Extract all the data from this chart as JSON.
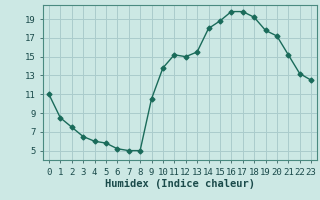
{
  "xlabel": "Humidex (Indice chaleur)",
  "x": [
    0,
    1,
    2,
    3,
    4,
    5,
    6,
    7,
    8,
    9,
    10,
    11,
    12,
    13,
    14,
    15,
    16,
    17,
    18,
    19,
    20,
    21,
    22,
    23
  ],
  "y": [
    11,
    8.5,
    7.5,
    6.5,
    6.0,
    5.8,
    5.2,
    5.0,
    5.0,
    10.5,
    13.8,
    15.2,
    15.0,
    15.5,
    18.0,
    18.8,
    19.8,
    19.8,
    19.2,
    17.8,
    17.2,
    15.2,
    13.2,
    12.5
  ],
  "line_color": "#1a6b5a",
  "marker": "D",
  "marker_size": 2.5,
  "bg_color": "#cce8e4",
  "grid_color": "#aacccc",
  "axis_bg": "#cce8e4",
  "ylim": [
    4,
    20.5
  ],
  "xlim": [
    -0.5,
    23.5
  ],
  "yticks": [
    5,
    7,
    9,
    11,
    13,
    15,
    17,
    19
  ],
  "xtick_labels": [
    "0",
    "1",
    "2",
    "3",
    "4",
    "5",
    "6",
    "7",
    "8",
    "9",
    "10",
    "11",
    "12",
    "13",
    "14",
    "15",
    "16",
    "17",
    "18",
    "19",
    "20",
    "21",
    "22",
    "23"
  ],
  "font_color": "#1a4a4a",
  "xlabel_fontsize": 7.5,
  "tick_fontsize": 6.5,
  "linewidth": 1.0
}
